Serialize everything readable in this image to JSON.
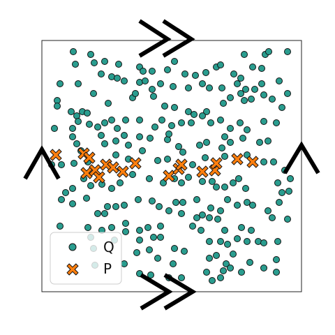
{
  "colors": {
    "q_fill": "#2a9d8f",
    "p_fill": "#ff7f0e",
    "stroke": "#111111",
    "frame": "#222222",
    "arrow": "#000000"
  },
  "icons": {
    "top_edge": "double-chevron-right-icon",
    "bottom_edge": "double-chevron-right-icon",
    "left_edge": "chevron-up-icon",
    "right_edge": "chevron-up-icon"
  },
  "legend": {
    "q_label": "Q",
    "p_label": "P"
  },
  "points": {
    "Q": [
      [
        105,
        74
      ],
      [
        130,
        78
      ],
      [
        150,
        88
      ],
      [
        170,
        92
      ],
      [
        108,
        92
      ],
      [
        135,
        90
      ],
      [
        200,
        96
      ],
      [
        205,
        102
      ],
      [
        218,
        102
      ],
      [
        240,
        100
      ],
      [
        250,
        88
      ],
      [
        265,
        106
      ],
      [
        280,
        108
      ],
      [
        295,
        104
      ],
      [
        310,
        96
      ],
      [
        316,
        93
      ],
      [
        335,
        106
      ],
      [
        345,
        112
      ],
      [
        350,
        78
      ],
      [
        362,
        96
      ],
      [
        375,
        98
      ],
      [
        380,
        78
      ],
      [
        385,
        74
      ],
      [
        412,
        74
      ],
      [
        86,
        120
      ],
      [
        112,
        120
      ],
      [
        145,
        106
      ],
      [
        160,
        110
      ],
      [
        168,
        112
      ],
      [
        178,
        116
      ],
      [
        200,
        118
      ],
      [
        208,
        116
      ],
      [
        230,
        120
      ],
      [
        248,
        124
      ],
      [
        270,
        126
      ],
      [
        290,
        120
      ],
      [
        300,
        126
      ],
      [
        318,
        126
      ],
      [
        340,
        120
      ],
      [
        352,
        128
      ],
      [
        365,
        128
      ],
      [
        375,
        120
      ],
      [
        400,
        116
      ],
      [
        82,
        144
      ],
      [
        82,
        152
      ],
      [
        102,
        160
      ],
      [
        110,
        166
      ],
      [
        118,
        160
      ],
      [
        125,
        162
      ],
      [
        134,
        134
      ],
      [
        155,
        148
      ],
      [
        190,
        140
      ],
      [
        194,
        134
      ],
      [
        218,
        128
      ],
      [
        220,
        138
      ],
      [
        236,
        152
      ],
      [
        250,
        154
      ],
      [
        270,
        160
      ],
      [
        278,
        164
      ],
      [
        296,
        160
      ],
      [
        320,
        148
      ],
      [
        330,
        140
      ],
      [
        345,
        134
      ],
      [
        350,
        144
      ],
      [
        360,
        142
      ],
      [
        378,
        136
      ],
      [
        390,
        142
      ],
      [
        412,
        134
      ],
      [
        78,
        184
      ],
      [
        104,
        184
      ],
      [
        104,
        196
      ],
      [
        112,
        174
      ],
      [
        128,
        178
      ],
      [
        140,
        182
      ],
      [
        150,
        176
      ],
      [
        160,
        172
      ],
      [
        168,
        184
      ],
      [
        180,
        172
      ],
      [
        200,
        172
      ],
      [
        222,
        182
      ],
      [
        232,
        172
      ],
      [
        246,
        180
      ],
      [
        260,
        176
      ],
      [
        274,
        176
      ],
      [
        290,
        166
      ],
      [
        302,
        176
      ],
      [
        316,
        172
      ],
      [
        330,
        184
      ],
      [
        344,
        176
      ],
      [
        354,
        186
      ],
      [
        378,
        174
      ],
      [
        396,
        176
      ],
      [
        404,
        154
      ],
      [
        110,
        206
      ],
      [
        145,
        194
      ],
      [
        150,
        206
      ],
      [
        166,
        202
      ],
      [
        178,
        194
      ],
      [
        184,
        208
      ],
      [
        200,
        196
      ],
      [
        215,
        198
      ],
      [
        240,
        200
      ],
      [
        242,
        192
      ],
      [
        256,
        210
      ],
      [
        286,
        208
      ],
      [
        296,
        204
      ],
      [
        318,
        212
      ],
      [
        322,
        196
      ],
      [
        330,
        204
      ],
      [
        348,
        198
      ],
      [
        372,
        204
      ],
      [
        384,
        202
      ],
      [
        74,
        236
      ],
      [
        88,
        236
      ],
      [
        106,
        234
      ],
      [
        116,
        216
      ],
      [
        126,
        232
      ],
      [
        166,
        222
      ],
      [
        184,
        228
      ],
      [
        204,
        216
      ],
      [
        226,
        230
      ],
      [
        240,
        228
      ],
      [
        262,
        218
      ],
      [
        276,
        236
      ],
      [
        294,
        226
      ],
      [
        322,
        224
      ],
      [
        354,
        222
      ],
      [
        378,
        232
      ],
      [
        392,
        232
      ],
      [
        408,
        244
      ],
      [
        416,
        256
      ],
      [
        94,
        276
      ],
      [
        104,
        270
      ],
      [
        120,
        256
      ],
      [
        130,
        266
      ],
      [
        146,
        264
      ],
      [
        160,
        270
      ],
      [
        172,
        262
      ],
      [
        190,
        250
      ],
      [
        214,
        256
      ],
      [
        234,
        262
      ],
      [
        250,
        256
      ],
      [
        260,
        262
      ],
      [
        270,
        254
      ],
      [
        290,
        260
      ],
      [
        304,
        260
      ],
      [
        310,
        268
      ],
      [
        322,
        268
      ],
      [
        334,
        262
      ],
      [
        342,
        256
      ],
      [
        352,
        270
      ],
      [
        398,
        262
      ],
      [
        404,
        276
      ],
      [
        414,
        274
      ],
      [
        88,
        286
      ],
      [
        104,
        292
      ],
      [
        124,
        284
      ],
      [
        150,
        306
      ],
      [
        154,
        296
      ],
      [
        166,
        296
      ],
      [
        178,
        294
      ],
      [
        198,
        286
      ],
      [
        218,
        288
      ],
      [
        228,
        296
      ],
      [
        242,
        302
      ],
      [
        252,
        290
      ],
      [
        262,
        290
      ],
      [
        282,
        286
      ],
      [
        302,
        298
      ],
      [
        316,
        302
      ],
      [
        326,
        286
      ],
      [
        340,
        294
      ],
      [
        354,
        290
      ],
      [
        362,
        294
      ],
      [
        384,
        302
      ],
      [
        400,
        290
      ],
      [
        86,
        324
      ],
      [
        126,
        326
      ],
      [
        140,
        306
      ],
      [
        160,
        326
      ],
      [
        180,
        320
      ],
      [
        200,
        330
      ],
      [
        212,
        326
      ],
      [
        230,
        324
      ],
      [
        260,
        306
      ],
      [
        276,
        324
      ],
      [
        282,
        312
      ],
      [
        288,
        330
      ],
      [
        290,
        308
      ],
      [
        300,
        312
      ],
      [
        312,
        314
      ],
      [
        322,
        330
      ],
      [
        346,
        326
      ],
      [
        360,
        330
      ],
      [
        390,
        312
      ],
      [
        412,
        314
      ],
      [
        130,
        340
      ],
      [
        134,
        356
      ],
      [
        146,
        330
      ],
      [
        164,
        344
      ],
      [
        180,
        332
      ],
      [
        200,
        344
      ],
      [
        220,
        340
      ],
      [
        230,
        340
      ],
      [
        300,
        346
      ],
      [
        316,
        346
      ],
      [
        326,
        350
      ],
      [
        340,
        342
      ],
      [
        354,
        346
      ],
      [
        370,
        346
      ],
      [
        378,
        348
      ],
      [
        398,
        346
      ],
      [
        196,
        362
      ],
      [
        214,
        358
      ],
      [
        226,
        370
      ],
      [
        250,
        356
      ],
      [
        264,
        360
      ],
      [
        300,
        370
      ],
      [
        310,
        366
      ],
      [
        324,
        378
      ],
      [
        334,
        364
      ],
      [
        358,
        376
      ],
      [
        396,
        372
      ],
      [
        200,
        392
      ],
      [
        216,
        394
      ],
      [
        242,
        398
      ],
      [
        260,
        398
      ],
      [
        296,
        390
      ],
      [
        304,
        402
      ],
      [
        316,
        398
      ],
      [
        320,
        388
      ],
      [
        330,
        384
      ],
      [
        346,
        390
      ],
      [
        378,
        384
      ],
      [
        396,
        390
      ],
      [
        136,
        380
      ],
      [
        178,
        378
      ],
      [
        248,
        378
      ]
    ],
    "P": [
      [
        80,
        222
      ],
      [
        120,
        220
      ],
      [
        128,
        226
      ],
      [
        124,
        248
      ],
      [
        136,
        244
      ],
      [
        142,
        254
      ],
      [
        152,
        236
      ],
      [
        162,
        240
      ],
      [
        176,
        246
      ],
      [
        194,
        234
      ],
      [
        242,
        252
      ],
      [
        256,
        242
      ],
      [
        260,
        236
      ],
      [
        290,
        246
      ],
      [
        308,
        244
      ],
      [
        310,
        234
      ],
      [
        340,
        228
      ],
      [
        362,
        232
      ]
    ]
  }
}
